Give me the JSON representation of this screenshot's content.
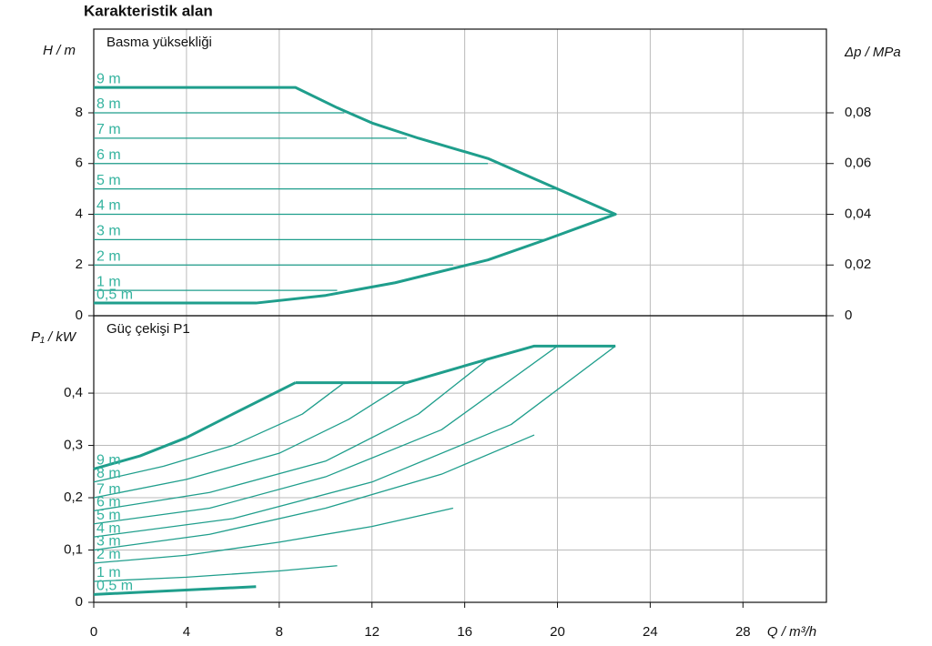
{
  "title": "Karakteristik alan",
  "chart_data": [
    {
      "type": "line",
      "title": "Basma yüksekliği",
      "ylabel": "H / m",
      "y2label": "Δp / MPa",
      "xlim": [
        0,
        31.6
      ],
      "xticks": [
        0,
        4,
        8,
        12,
        16,
        20,
        24,
        28
      ],
      "ylim": [
        0,
        11.3
      ],
      "yticks": [
        0,
        2,
        4,
        6,
        8
      ],
      "y2lim": [
        0,
        0.113
      ],
      "y2ticks": [
        0,
        {
          "value": 0.02,
          "label": "0,02"
        },
        {
          "value": 0.04,
          "label": "0,04"
        },
        {
          "value": 0.06,
          "label": "0,06"
        },
        {
          "value": 0.08,
          "label": "0,08"
        }
      ],
      "grid": true,
      "color": "#1f9e8c",
      "label_color": "#35b39f",
      "series": [
        {
          "name": "9 m",
          "x": [
            0,
            8.7
          ],
          "values": [
            9,
            9
          ]
        },
        {
          "name": "8 m",
          "x": [
            0,
            10.8
          ],
          "values": [
            8,
            8
          ]
        },
        {
          "name": "7 m",
          "x": [
            0,
            13.5
          ],
          "values": [
            7,
            7
          ]
        },
        {
          "name": "6 m",
          "x": [
            0,
            17
          ],
          "values": [
            6,
            6
          ]
        },
        {
          "name": "5 m",
          "x": [
            0,
            20
          ],
          "values": [
            5,
            5
          ]
        },
        {
          "name": "4 m",
          "x": [
            0,
            22.5
          ],
          "values": [
            4,
            4
          ]
        },
        {
          "name": "3 m",
          "x": [
            0,
            19.5
          ],
          "values": [
            3,
            3
          ]
        },
        {
          "name": "2 m",
          "x": [
            0,
            15.5
          ],
          "values": [
            2,
            2
          ]
        },
        {
          "name": "1 m",
          "x": [
            0,
            10.5
          ],
          "values": [
            1,
            1
          ]
        },
        {
          "name": "0,5 m",
          "x": [
            0,
            7
          ],
          "values": [
            0.5,
            0.5
          ]
        },
        {
          "x": [
            0,
            8.7,
            10.5,
            12,
            14,
            17,
            20,
            22.5,
            19.5,
            17,
            13,
            10,
            7,
            0
          ],
          "values": [
            9,
            9,
            8.2,
            7.6,
            7,
            6.2,
            5,
            4,
            3,
            2.2,
            1.3,
            0.8,
            0.5,
            0.5
          ],
          "line_width": 3
        }
      ]
    },
    {
      "type": "line",
      "title": "Güç çekişi P1",
      "ylabel": "P₁ / kW",
      "xlabel": "Q / m³/h",
      "xlim": [
        0,
        31.6
      ],
      "xticks": [
        0,
        4,
        8,
        12,
        16,
        20,
        24,
        28
      ],
      "ylim": [
        0,
        0.548
      ],
      "yticks": [
        0,
        {
          "value": 0.1,
          "label": "0,1"
        },
        {
          "value": 0.2,
          "label": "0,2"
        },
        {
          "value": 0.3,
          "label": "0,3"
        },
        {
          "value": 0.4,
          "label": "0,4"
        }
      ],
      "grid": true,
      "color": "#1f9e8c",
      "label_color": "#35b39f",
      "series": [
        {
          "name": "9 m",
          "x": [
            0,
            2,
            4,
            6,
            8.7
          ],
          "values": [
            0.255,
            0.28,
            0.315,
            0.36,
            0.42
          ],
          "line_width": 3
        },
        {
          "name": "8 m",
          "x": [
            0,
            3,
            6,
            9,
            10.8
          ],
          "values": [
            0.23,
            0.26,
            0.3,
            0.36,
            0.42
          ]
        },
        {
          "name": "7 m",
          "x": [
            0,
            4,
            8,
            11,
            13.5
          ],
          "values": [
            0.2,
            0.235,
            0.285,
            0.35,
            0.42
          ]
        },
        {
          "name": "6 m",
          "x": [
            0,
            5,
            10,
            14,
            17
          ],
          "values": [
            0.175,
            0.21,
            0.27,
            0.36,
            0.465
          ]
        },
        {
          "name": "5 m",
          "x": [
            0,
            5,
            10,
            15,
            20
          ],
          "values": [
            0.15,
            0.18,
            0.24,
            0.33,
            0.49
          ]
        },
        {
          "name": "4 m",
          "x": [
            0,
            6,
            12,
            18,
            22.5
          ],
          "values": [
            0.125,
            0.16,
            0.23,
            0.34,
            0.49
          ]
        },
        {
          "name": "3 m",
          "x": [
            0,
            5,
            10,
            15,
            19
          ],
          "values": [
            0.1,
            0.13,
            0.18,
            0.245,
            0.32
          ]
        },
        {
          "name": "2 m",
          "x": [
            0,
            4,
            8,
            12,
            15.5
          ],
          "values": [
            0.075,
            0.09,
            0.115,
            0.145,
            0.18
          ]
        },
        {
          "name": "1 m",
          "x": [
            0,
            4,
            8,
            10.5
          ],
          "values": [
            0.04,
            0.048,
            0.06,
            0.07
          ]
        },
        {
          "name": "0,5 m",
          "x": [
            0,
            7
          ],
          "values": [
            0.015,
            0.03
          ],
          "line_width": 3
        },
        {
          "x": [
            8.7,
            13.5,
            17,
            19,
            22.5
          ],
          "values": [
            0.42,
            0.42,
            0.465,
            0.49,
            0.49
          ],
          "line_width": 3
        }
      ]
    }
  ]
}
